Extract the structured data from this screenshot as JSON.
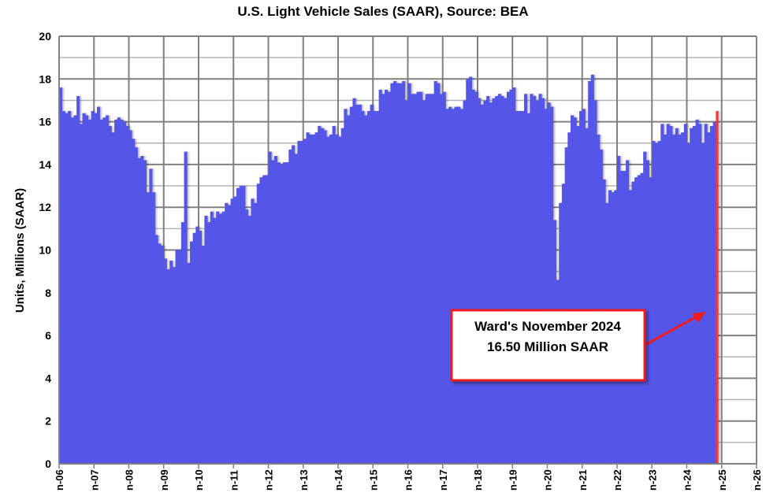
{
  "chart_data": {
    "type": "bar",
    "title": "U.S. Light Vehicle Sales (SAAR), Source: BEA",
    "xlabel": "",
    "ylabel": "Units, Millions (SAAR)",
    "ylim": [
      0,
      20
    ],
    "yticks": [
      0,
      2,
      4,
      6,
      8,
      10,
      12,
      14,
      16,
      18,
      20
    ],
    "xlim_years": [
      2006,
      2026
    ],
    "xtick_labels": [
      "n-06",
      "n-07",
      "n-08",
      "n-09",
      "n-10",
      "n-11",
      "n-12",
      "n-13",
      "n-14",
      "n-15",
      "n-16",
      "n-17",
      "n-18",
      "n-19",
      "n-20",
      "n-21",
      "n-22",
      "n-23",
      "n-24",
      "n-25",
      "n-26"
    ],
    "grid": true,
    "start_month": "2006-01",
    "end_month": "2024-11",
    "bar_color": "#5555e8",
    "highlight_color": "#f03838",
    "values": [
      17.6,
      16.5,
      16.4,
      16.5,
      16.2,
      16.3,
      17.2,
      15.9,
      16.4,
      16.3,
      16.1,
      16.5,
      16.4,
      16.7,
      16.1,
      16.2,
      16.3,
      15.8,
      15.5,
      16.1,
      16.2,
      16.1,
      16.0,
      15.8,
      15.6,
      15.2,
      14.8,
      14.3,
      14.4,
      14.2,
      12.7,
      13.8,
      12.7,
      10.7,
      10.3,
      10.2,
      9.6,
      9.1,
      9.5,
      9.2,
      10.0,
      10.0,
      11.3,
      14.6,
      9.4,
      10.4,
      10.8,
      11.1,
      10.9,
      10.2,
      11.6,
      11.3,
      11.8,
      11.5,
      11.8,
      11.7,
      11.8,
      12.2,
      12.1,
      12.4,
      12.5,
      12.9,
      13.0,
      13.0,
      11.9,
      11.6,
      12.4,
      12.2,
      13.1,
      13.4,
      13.5,
      13.5,
      14.6,
      14.2,
      14.4,
      14.1,
      14.0,
      14.1,
      14.1,
      14.7,
      14.9,
      14.5,
      15.1,
      15.1,
      15.2,
      15.5,
      15.4,
      15.4,
      15.5,
      15.8,
      15.7,
      15.6,
      15.3,
      15.4,
      15.8,
      15.4,
      15.3,
      15.7,
      16.6,
      16.3,
      16.7,
      17.1,
      16.8,
      16.8,
      16.5,
      16.3,
      16.5,
      16.8,
      16.5,
      16.5,
      17.5,
      17.3,
      17.5,
      17.4,
      17.8,
      17.9,
      17.8,
      17.8,
      17.9,
      17.0,
      17.8,
      17.3,
      17.3,
      17.4,
      17.4,
      17.0,
      17.3,
      17.3,
      17.3,
      17.9,
      17.8,
      17.3,
      17.4,
      16.6,
      16.7,
      16.6,
      16.7,
      16.7,
      16.6,
      17.0,
      18.0,
      18.1,
      17.5,
      17.4,
      17.1,
      16.8,
      17.0,
      17.2,
      16.9,
      17.1,
      17.2,
      17.3,
      17.2,
      17.1,
      17.4,
      17.5,
      17.6,
      16.5,
      16.5,
      16.5,
      17.3,
      16.4,
      17.3,
      17.2,
      17.0,
      17.3,
      17.1,
      16.6,
      16.9,
      16.7,
      11.4,
      8.6,
      12.2,
      13.1,
      14.8,
      15.5,
      16.3,
      16.2,
      15.8,
      16.5,
      16.6,
      15.7,
      17.9,
      18.2,
      17.0,
      15.4,
      14.7,
      13.3,
      12.2,
      12.8,
      12.7,
      12.8,
      14.4,
      13.7,
      13.7,
      14.2,
      12.8,
      13.2,
      13.4,
      13.5,
      13.6,
      14.6,
      14.2,
      13.4,
      15.1,
      15.0,
      15.1,
      15.9,
      15.4,
      15.9,
      15.8,
      15.4,
      15.7,
      15.4,
      15.5,
      15.9,
      15.0,
      15.7,
      15.8,
      16.1,
      15.9,
      15.0,
      15.9,
      15.5,
      15.8,
      16.0,
      16.5
    ],
    "annotation": {
      "line1": "Ward's November 2024",
      "line2": "16.50 Million SAAR",
      "points_to": "2024-11"
    }
  }
}
